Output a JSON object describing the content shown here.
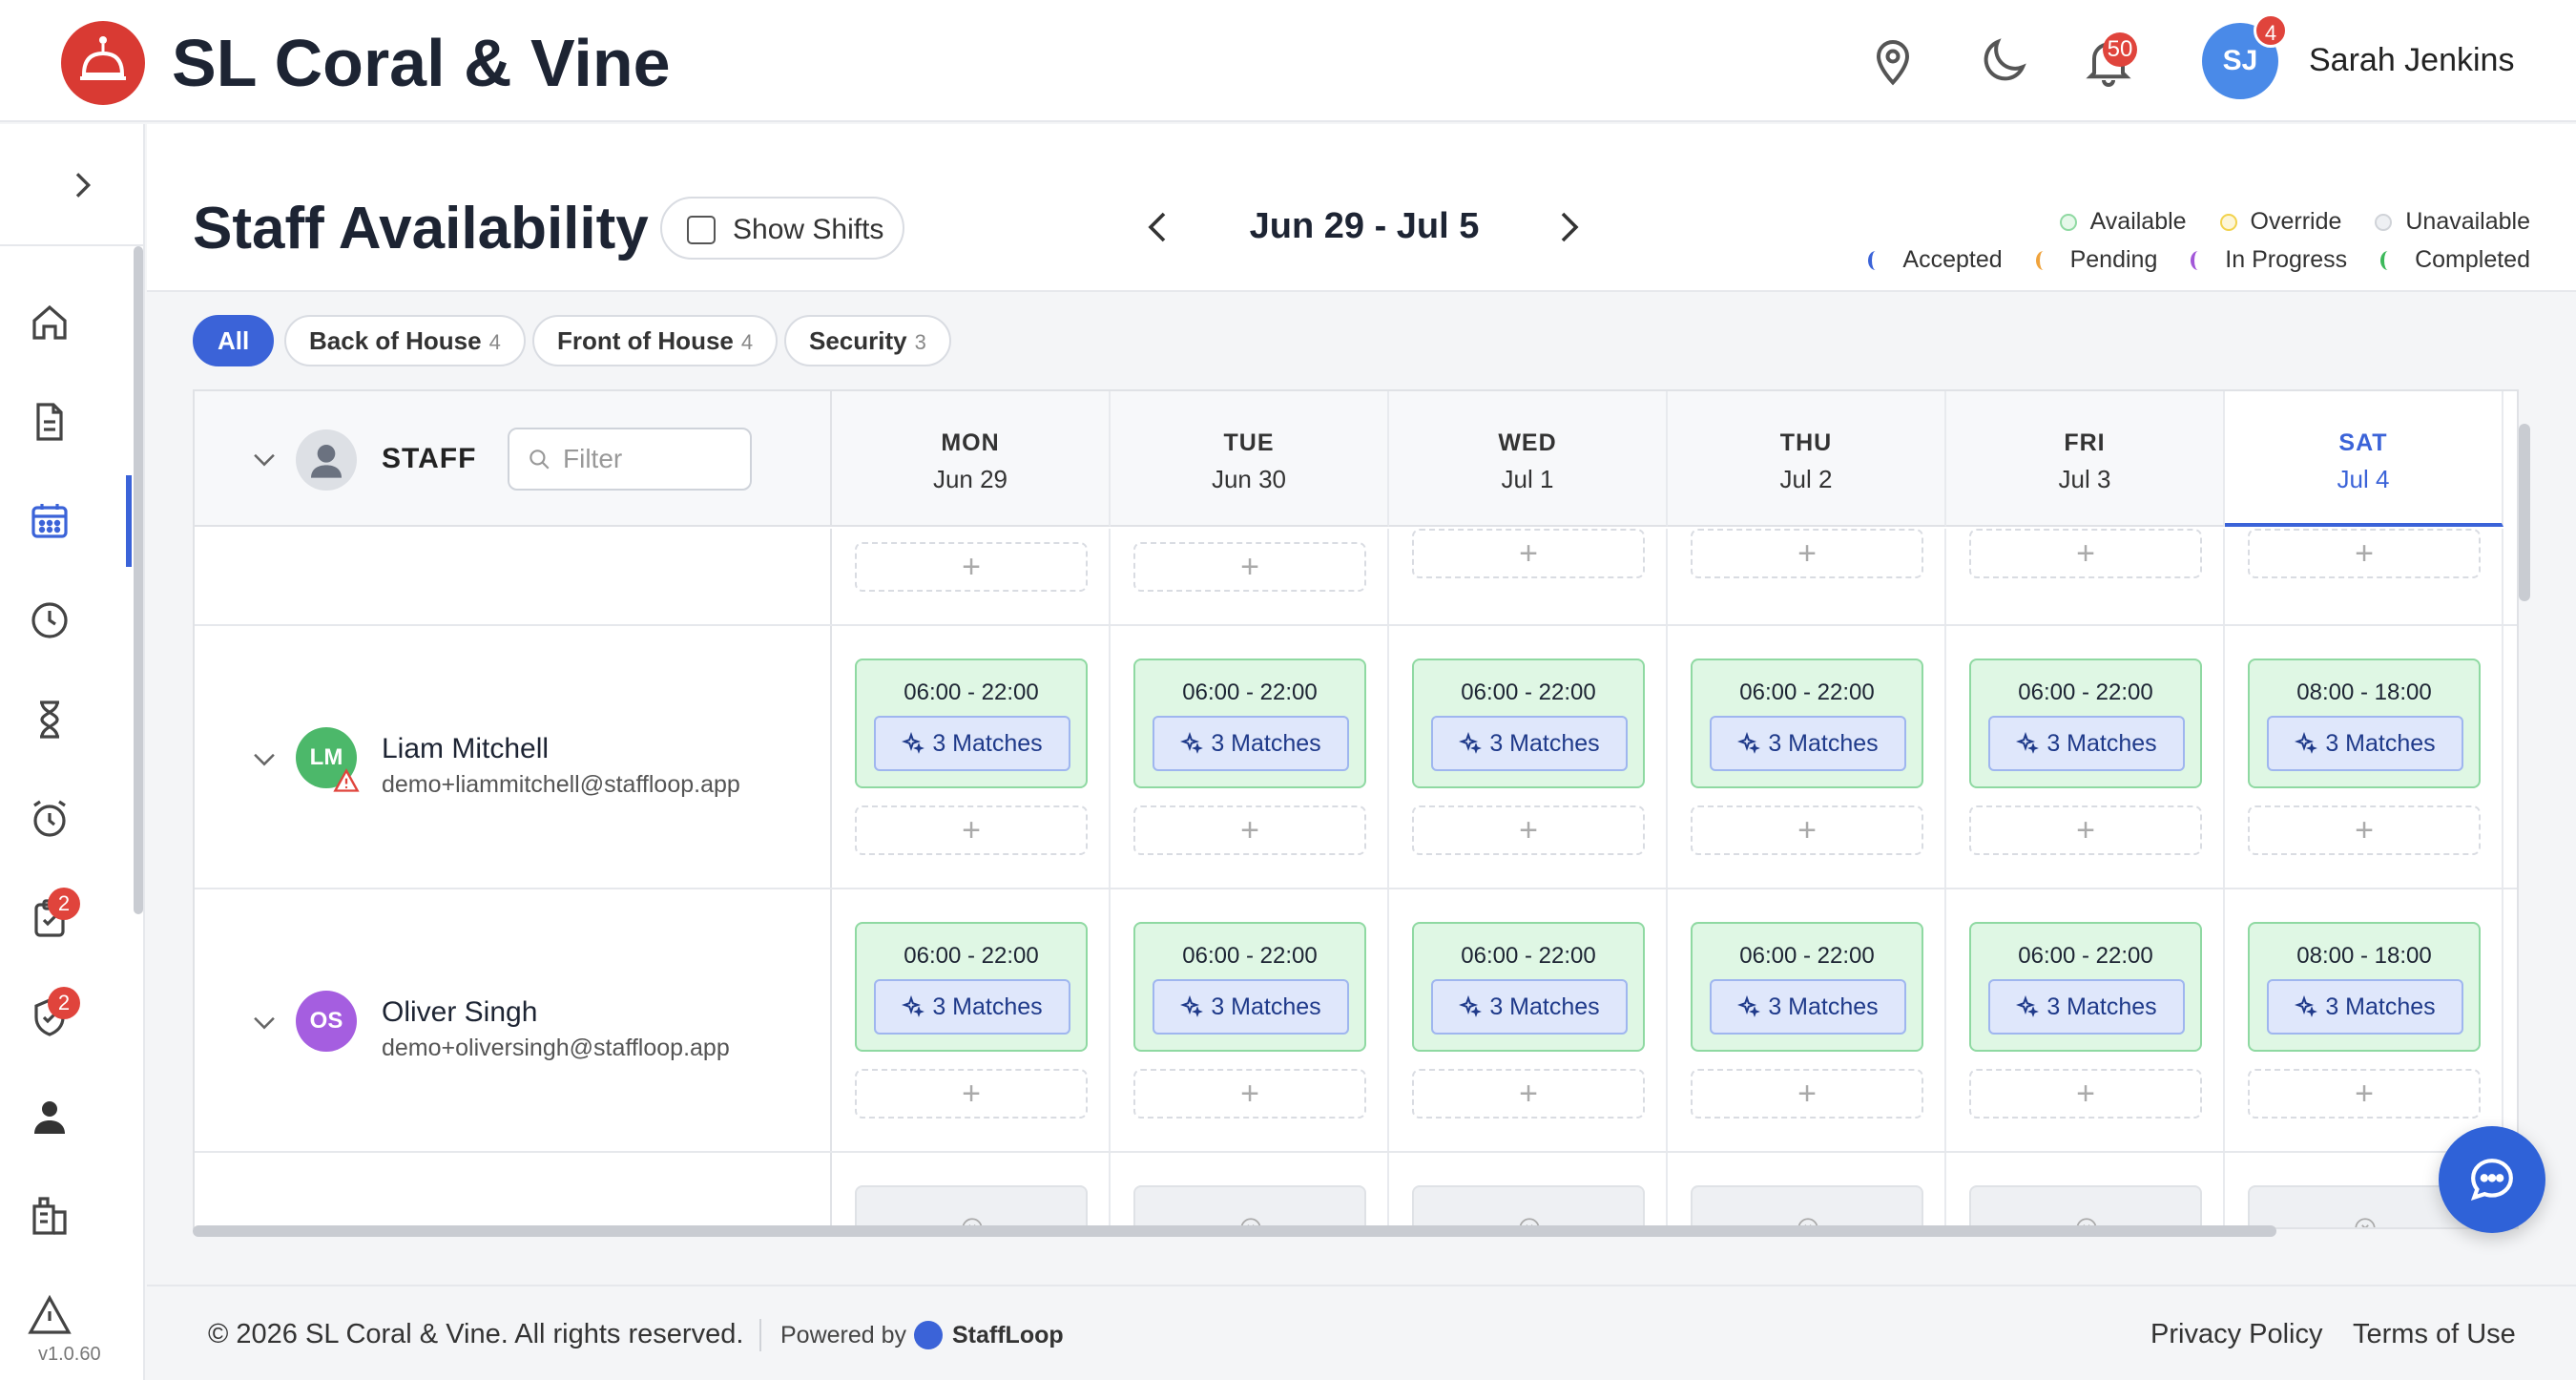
{
  "app": {
    "brand": "SL Coral & Vine",
    "version": "v1.0.60"
  },
  "header": {
    "notifications_count": "50",
    "user": {
      "initials": "SJ",
      "name": "Sarah Jenkins",
      "badge": "4"
    }
  },
  "sidebar": {
    "items": [
      {
        "name": "home-icon"
      },
      {
        "name": "document-icon"
      },
      {
        "name": "calendar-icon",
        "active": true
      },
      {
        "name": "clock-icon"
      },
      {
        "name": "hourglass-icon"
      },
      {
        "name": "alarm-icon"
      },
      {
        "name": "clipboard-icon",
        "badge": "2"
      },
      {
        "name": "shield-check-icon",
        "badge": "2"
      },
      {
        "name": "user-icon"
      },
      {
        "name": "building-icon"
      },
      {
        "name": "warning-icon"
      }
    ]
  },
  "page": {
    "title": "Staff Availability",
    "show_shifts_label": "Show Shifts",
    "date_range": "Jun 29 - Jul 5"
  },
  "legend": {
    "availability": [
      {
        "label": "Available",
        "color": "#8fd9a2"
      },
      {
        "label": "Override",
        "color": "#f2d24c"
      },
      {
        "label": "Unavailable",
        "color": "#d0d3d8"
      }
    ],
    "status": [
      {
        "label": "Accepted",
        "color": "#3b63d8"
      },
      {
        "label": "Pending",
        "color": "#f0a33c"
      },
      {
        "label": "In Progress",
        "color": "#a257d8"
      },
      {
        "label": "Completed",
        "color": "#3cb95a"
      }
    ]
  },
  "filters": [
    {
      "label": "All",
      "count": "",
      "active": true
    },
    {
      "label": "Back of House",
      "count": "4"
    },
    {
      "label": "Front of House",
      "count": "4"
    },
    {
      "label": "Security",
      "count": "3"
    }
  ],
  "grid": {
    "staff_header": "STAFF",
    "filter_placeholder": "Filter",
    "days": [
      {
        "name": "MON",
        "date": "Jun 29"
      },
      {
        "name": "TUE",
        "date": "Jun 30"
      },
      {
        "name": "WED",
        "date": "Jul 1"
      },
      {
        "name": "THU",
        "date": "Jul 2"
      },
      {
        "name": "FRI",
        "date": "Jul 3"
      },
      {
        "name": "SAT",
        "date": "Jul 4",
        "today": true
      }
    ],
    "staff": [
      {
        "initials": "LM",
        "name": "Liam Mitchell",
        "email": "demo+liammitchell@staffloop.app",
        "avatar_color": "#4cb86a",
        "warning": true,
        "shifts": [
          {
            "time": "06:00 - 22:00",
            "matches": "3 Matches"
          },
          {
            "time": "06:00 - 22:00",
            "matches": "3 Matches"
          },
          {
            "time": "06:00 - 22:00",
            "matches": "3 Matches"
          },
          {
            "time": "06:00 - 22:00",
            "matches": "3 Matches"
          },
          {
            "time": "06:00 - 22:00",
            "matches": "3 Matches"
          },
          {
            "time": "08:00 - 18:00",
            "matches": "3 Matches"
          }
        ]
      },
      {
        "initials": "OS",
        "name": "Oliver Singh",
        "email": "demo+oliversingh@staffloop.app",
        "avatar_color": "#a55ee0",
        "warning": false,
        "shifts": [
          {
            "time": "06:00 - 22:00",
            "matches": "3 Matches"
          },
          {
            "time": "06:00 - 22:00",
            "matches": "3 Matches"
          },
          {
            "time": "06:00 - 22:00",
            "matches": "3 Matches"
          },
          {
            "time": "06:00 - 22:00",
            "matches": "3 Matches"
          },
          {
            "time": "06:00 - 22:00",
            "matches": "3 Matches"
          },
          {
            "time": "08:00 - 18:00",
            "matches": "3 Matches"
          }
        ]
      }
    ]
  },
  "footer": {
    "copyright": "© 2026 SL Coral & Vine. All rights reserved.",
    "powered_by": "Powered by",
    "powered_brand": "StaffLoop",
    "privacy": "Privacy Policy",
    "terms": "Terms of Use"
  }
}
